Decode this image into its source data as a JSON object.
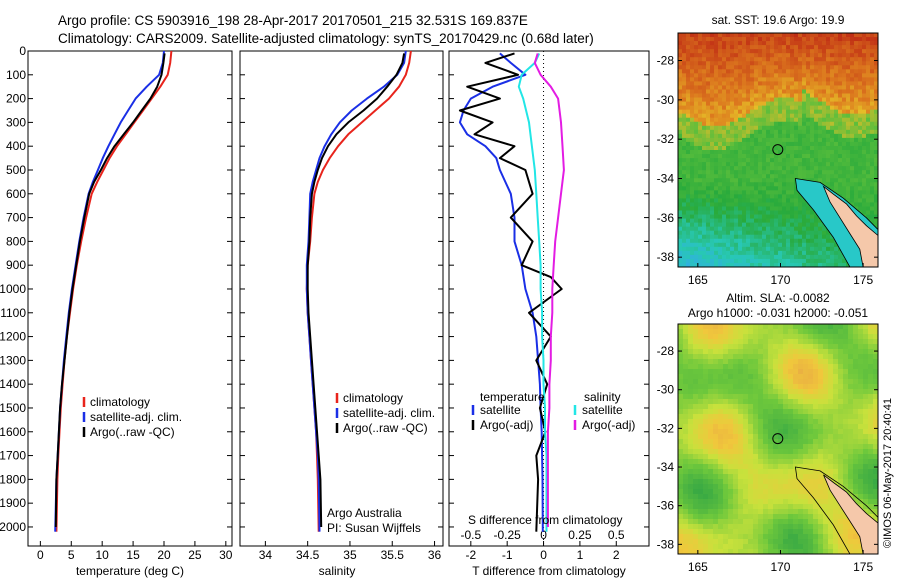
{
  "header": {
    "line1": "Argo profile: CS 5903916_198 28-Apr-2017 20170501_215 32.531S 169.837E",
    "line2": "Climatology: CARS2009. Satellite-adjusted climatology: synTS_20170429.nc (0.68d later)"
  },
  "credit": {
    "org": "Argo Australia",
    "pi": "PI: Susan Wijffels",
    "stamp": "©IMOS 06-May-2017 20:40:41"
  },
  "colors": {
    "climatology": "#e8241c",
    "satellite": "#1a2fe6",
    "argo": "#000000",
    "salinity_sat": "#22e6e6",
    "salinity_argo": "#e31ce3"
  },
  "chart_data": [
    {
      "type": "line",
      "xlabel": "temperature (deg C)",
      "ylabel": "",
      "xlim": [
        -2,
        31
      ],
      "ylim": [
        2080,
        0
      ],
      "xticks": [
        0,
        5,
        10,
        15,
        20,
        25,
        30
      ],
      "yticks": [
        0,
        100,
        200,
        300,
        400,
        500,
        600,
        700,
        800,
        900,
        1000,
        1100,
        1200,
        1300,
        1400,
        1500,
        1600,
        1700,
        1800,
        1900,
        2000
      ],
      "legend": [
        "climatology",
        "satellite-adj. clim.",
        "Argo(..raw -QC)"
      ],
      "series": [
        {
          "name": "climatology",
          "color": "#e8241c",
          "x": [
            21.2,
            21.0,
            20.6,
            19.4,
            18.0,
            16.6,
            15.2,
            13.8,
            12.4,
            11.2,
            10.2,
            9.2,
            8.3,
            7.4,
            6.6,
            5.9,
            5.3,
            4.8,
            4.3,
            3.9,
            3.6,
            3.3,
            3.1,
            2.9,
            2.75,
            2.6
          ],
          "y": [
            0,
            50,
            100,
            150,
            200,
            250,
            300,
            350,
            400,
            450,
            500,
            550,
            600,
            700,
            800,
            900,
            1000,
            1100,
            1200,
            1300,
            1400,
            1500,
            1600,
            1700,
            1800,
            2020
          ]
        },
        {
          "name": "satellite-adj. clim.",
          "color": "#1a2fe6",
          "x": [
            20.0,
            19.8,
            19.2,
            17.2,
            15.4,
            14.2,
            13.0,
            12.0,
            11.0,
            10.1,
            9.3,
            8.5,
            7.8,
            7.0,
            6.3,
            5.7,
            5.1,
            4.6,
            4.2,
            3.8,
            3.5,
            3.2,
            3.0,
            2.8,
            2.6,
            2.4
          ],
          "y": [
            0,
            50,
            100,
            150,
            200,
            250,
            300,
            350,
            400,
            450,
            500,
            550,
            600,
            700,
            800,
            900,
            1000,
            1100,
            1200,
            1300,
            1400,
            1500,
            1600,
            1700,
            1800,
            2020
          ]
        },
        {
          "name": "Argo(..raw -QC)",
          "color": "#000000",
          "x": [
            20.1,
            19.9,
            19.6,
            18.9,
            17.8,
            16.4,
            15.0,
            13.5,
            12.0,
            10.8,
            9.8,
            8.7,
            7.9,
            7.1,
            6.4,
            5.8,
            5.2,
            4.7,
            4.3,
            3.9,
            3.5,
            3.2,
            3.0,
            2.8,
            2.6,
            2.5
          ],
          "y": [
            10,
            50,
            100,
            150,
            200,
            250,
            300,
            350,
            400,
            450,
            500,
            550,
            600,
            700,
            800,
            900,
            1000,
            1100,
            1200,
            1300,
            1400,
            1500,
            1600,
            1700,
            1800,
            2000
          ]
        }
      ]
    },
    {
      "type": "line",
      "xlabel": "salinity",
      "ylabel": "",
      "xlim": [
        33.7,
        36.1
      ],
      "ylim": [
        2080,
        0
      ],
      "xticks": [
        34,
        34.5,
        35,
        35.5,
        36
      ],
      "legend": [
        "climatology",
        "satellite-adj. clim.",
        "Argo(..raw -QC)"
      ],
      "series": [
        {
          "name": "climatology",
          "color": "#e8241c",
          "x": [
            35.72,
            35.7,
            35.66,
            35.58,
            35.46,
            35.3,
            35.14,
            34.98,
            34.86,
            34.76,
            34.68,
            34.62,
            34.58,
            34.55,
            34.53,
            34.5,
            34.49,
            34.5,
            34.52,
            34.54,
            34.56,
            34.58,
            34.6,
            34.61,
            34.62,
            34.63
          ],
          "y": [
            0,
            50,
            100,
            150,
            200,
            250,
            300,
            350,
            400,
            450,
            500,
            550,
            600,
            700,
            800,
            900,
            1000,
            1100,
            1200,
            1300,
            1400,
            1500,
            1600,
            1700,
            1800,
            2020
          ]
        },
        {
          "name": "satellite-adj. clim.",
          "color": "#1a2fe6",
          "x": [
            35.66,
            35.64,
            35.56,
            35.4,
            35.2,
            35.02,
            34.88,
            34.78,
            34.7,
            34.64,
            34.6,
            34.56,
            34.53,
            34.52,
            34.51,
            34.49,
            34.49,
            34.5,
            34.52,
            34.54,
            34.56,
            34.58,
            34.6,
            34.62,
            34.63,
            34.64
          ],
          "y": [
            0,
            50,
            100,
            150,
            200,
            250,
            300,
            350,
            400,
            450,
            500,
            550,
            600,
            700,
            800,
            900,
            1000,
            1100,
            1200,
            1300,
            1400,
            1500,
            1600,
            1700,
            1800,
            2020
          ]
        },
        {
          "name": "Argo(..raw -QC)",
          "color": "#000000",
          "x": [
            35.64,
            35.62,
            35.55,
            35.44,
            35.32,
            35.16,
            34.98,
            34.84,
            34.74,
            34.67,
            34.62,
            34.58,
            34.55,
            34.53,
            34.52,
            34.5,
            34.5,
            34.51,
            34.53,
            34.55,
            34.57,
            34.59,
            34.61,
            34.63,
            34.65,
            34.66
          ],
          "y": [
            10,
            50,
            100,
            150,
            200,
            250,
            300,
            350,
            400,
            450,
            500,
            550,
            600,
            700,
            800,
            900,
            1000,
            1100,
            1200,
            1300,
            1400,
            1500,
            1600,
            1700,
            1800,
            2000
          ]
        }
      ]
    },
    {
      "type": "line",
      "xlabel": "T difference from climatology",
      "xlabel2": "S difference from climatology",
      "xlim": [
        -2.6,
        2.9
      ],
      "ylim": [
        2080,
        0
      ],
      "xticks": [
        -2,
        -1,
        0,
        1,
        2
      ],
      "xticks2_labels": [
        "-0.5",
        "-0.25",
        "0",
        "0.25",
        "0.5"
      ],
      "legend_temperature_title": "temperature",
      "legend_salinity_title": "salinity",
      "legend": [
        "satellite",
        "Argo(-adj)",
        "satellite",
        "Argo(-adj)"
      ],
      "series": [
        {
          "name": "satellite",
          "group": "temperature",
          "color": "#1a2fe6",
          "x": [
            -1.2,
            -0.9,
            -0.5,
            -1.4,
            -2.0,
            -2.2,
            -2.3,
            -2.1,
            -1.6,
            -1.3,
            -1.2,
            -0.9,
            -0.8,
            -0.8,
            -0.6,
            -0.5,
            -0.3,
            -0.2,
            -0.15,
            -0.1,
            -0.08,
            -0.05,
            -0.04,
            -0.03,
            -0.02
          ],
          "y": [
            10,
            50,
            100,
            150,
            200,
            250,
            300,
            350,
            400,
            450,
            500,
            600,
            700,
            800,
            900,
            1000,
            1100,
            1200,
            1300,
            1400,
            1500,
            1600,
            1700,
            1800,
            2020
          ]
        },
        {
          "name": "Argo(-adj)",
          "group": "temperature",
          "color": "#000000",
          "x": [
            -0.8,
            -1.6,
            -0.7,
            -2.1,
            -1.2,
            -2.3,
            -1.4,
            -1.9,
            -0.8,
            -1.2,
            -0.5,
            -0.3,
            -0.9,
            -0.3,
            -0.6,
            0.2,
            0.5,
            -0.4,
            0.2,
            -0.2,
            0.1,
            -0.1,
            0.05,
            -0.2,
            -0.15,
            -0.2
          ],
          "y": [
            10,
            50,
            100,
            150,
            200,
            250,
            300,
            350,
            400,
            450,
            500,
            600,
            700,
            800,
            900,
            950,
            1000,
            1100,
            1200,
            1300,
            1400,
            1500,
            1600,
            1700,
            1800,
            2020
          ]
        },
        {
          "name": "satellite",
          "group": "salinity",
          "color": "#22e6e6",
          "x": [
            -0.03,
            -0.06,
            -0.15,
            -0.17,
            -0.14,
            -0.1,
            -0.08,
            -0.06,
            -0.05,
            -0.04,
            -0.03,
            -0.02,
            -0.02,
            -0.01,
            -0.01,
            0.0,
            0.0,
            0.01,
            0.01,
            0.02,
            0.02,
            0.02
          ],
          "y": [
            10,
            50,
            100,
            150,
            200,
            300,
            400,
            500,
            600,
            700,
            800,
            900,
            1000,
            1100,
            1200,
            1300,
            1400,
            1500,
            1600,
            1700,
            1800,
            2020
          ]
        },
        {
          "name": "Argo(-adj)",
          "group": "salinity",
          "color": "#e31ce3",
          "x": [
            -0.04,
            -0.06,
            -0.02,
            0.05,
            0.1,
            0.12,
            0.13,
            0.14,
            0.12,
            0.1,
            0.08,
            0.07,
            0.06,
            0.06,
            0.05,
            0.05,
            0.04,
            0.04,
            0.03,
            0.03,
            0.03,
            0.03
          ],
          "y": [
            10,
            50,
            100,
            150,
            200,
            300,
            400,
            500,
            600,
            700,
            800,
            900,
            1000,
            1100,
            1200,
            1300,
            1400,
            1500,
            1600,
            1700,
            1800,
            2000
          ]
        }
      ]
    },
    {
      "type": "heatmap",
      "title": "sat. SST: 19.6 Argo: 19.9",
      "xlim": [
        163.8,
        175.9
      ],
      "ylim": [
        -38.5,
        -26.6
      ],
      "xticks": [
        165,
        170,
        175
      ],
      "yticks": [
        -28,
        -30,
        -32,
        -34,
        -36,
        -38
      ],
      "marker": {
        "lon": 169.837,
        "lat": -32.531
      }
    },
    {
      "type": "heatmap",
      "title_line1": "Altim. SLA: -0.0082",
      "title_line2": "Argo h1000: -0.031 h2000: -0.051",
      "xlim": [
        163.8,
        175.9
      ],
      "ylim": [
        -38.5,
        -26.6
      ],
      "xticks": [
        165,
        170,
        175
      ],
      "yticks": [
        -28,
        -30,
        -32,
        -34,
        -36,
        -38
      ],
      "marker": {
        "lon": 169.837,
        "lat": -32.531
      }
    }
  ]
}
